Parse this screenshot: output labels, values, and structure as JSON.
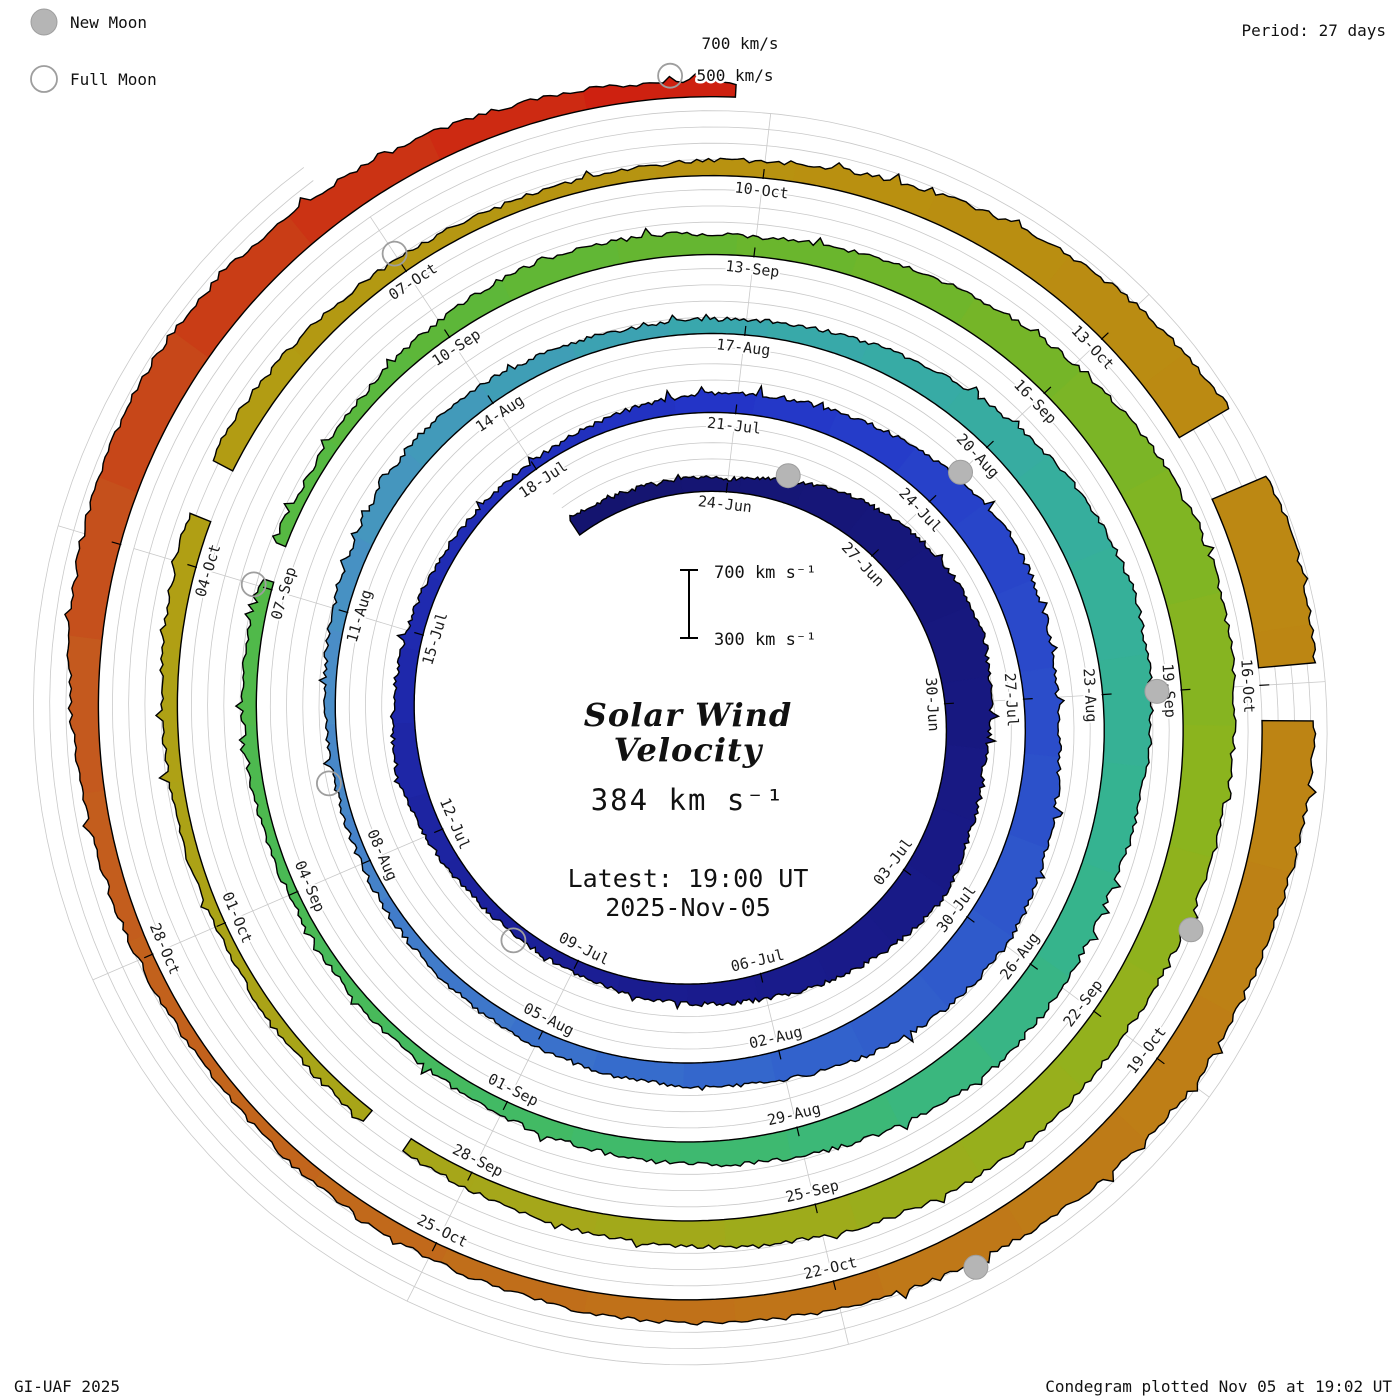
{
  "legend": {
    "new_moon": "New Moon",
    "full_moon": "Full Moon"
  },
  "header": {
    "period": "Period: 27 days"
  },
  "footer": {
    "credit": "GI-UAF 2025",
    "plotted": "Condegram plotted Nov 05 at 19:02 UT"
  },
  "top_axis": {
    "l700": "700 km/s",
    "l500": "500 km/s"
  },
  "center": {
    "title_line1": "Solar Wind",
    "title_line2": "Velocity",
    "current": "384 km s⁻¹",
    "latest": "Latest: 19:00 UT",
    "date": "2025-Nov-05",
    "scale_top": "700 km s⁻¹",
    "scale_bottom": "300 km s⁻¹"
  },
  "colors": {
    "accent_red": "#e8402f",
    "moon_gray": "#b5b5b5",
    "moon_outline": "#9e9e9e",
    "grid_gray": "#c9c9c9",
    "band_outline": "#000000"
  },
  "chart_data": {
    "type": "area",
    "subtype": "condegram-spiral",
    "title": "Solar Wind Velocity",
    "units": "km/s",
    "period_days": 27,
    "start_date": "2025-06-21",
    "end_date_label": "2025-Nov-05 19:00 UT",
    "end_day": 137.79,
    "latest_velocity_kms": 384,
    "velocity_axis": {
      "min": 300,
      "max": 700,
      "gridlines": [
        300,
        400,
        500,
        600,
        700
      ]
    },
    "date_labels": [
      "24-Jun",
      "27-Jun",
      "30-Jun",
      "03-Jul",
      "06-Jul",
      "09-Jul",
      "12-Jul",
      "15-Jul",
      "18-Jul",
      "21-Jul",
      "24-Jul",
      "27-Jul",
      "30-Jul",
      "02-Aug",
      "05-Aug",
      "08-Aug",
      "11-Aug",
      "14-Aug",
      "17-Aug",
      "20-Aug",
      "23-Aug",
      "26-Aug",
      "29-Aug",
      "01-Sep",
      "04-Sep",
      "07-Sep",
      "10-Sep",
      "13-Sep",
      "16-Sep",
      "19-Sep",
      "22-Sep",
      "25-Sep",
      "28-Sep",
      "01-Oct",
      "04-Oct",
      "07-Oct",
      "10-Oct",
      "13-Oct",
      "16-Oct",
      "19-Oct",
      "22-Oct",
      "25-Oct",
      "28-Oct"
    ],
    "daily_velocities": [
      420,
      400,
      385,
      380,
      430,
      510,
      570,
      610,
      625,
      585,
      545,
      560,
      600,
      555,
      505,
      455,
      425,
      400,
      380,
      360,
      375,
      415,
      450,
      430,
      400,
      380,
      360,
      350,
      370,
      400,
      425,
      445,
      480,
      525,
      560,
      540,
      505,
      525,
      560,
      600,
      575,
      535,
      480,
      445,
      420,
      400,
      380,
      368,
      358,
      352,
      368,
      390,
      420,
      448,
      430,
      400,
      382,
      392,
      420,
      462,
      520,
      578,
      618,
      598,
      558,
      522,
      540,
      558,
      520,
      478,
      440,
      412,
      390,
      372,
      360,
      352,
      370,
      388,
      378,
      362,
      380,
      420,
      458,
      440,
      420,
      450,
      500,
      558,
      618,
      648,
      628,
      588,
      550,
      532,
      558,
      540,
      500,
      462,
      430,
      402,
      382,
      370,
      362,
      380,
      402,
      428,
      450,
      422,
      392,
      372,
      382,
      402,
      450,
      520,
      598,
      658,
      678,
      640,
      592,
      562,
      578,
      542,
      502,
      472,
      442,
      422,
      402,
      385,
      372,
      390,
      430,
      482,
      540,
      578,
      552,
      505,
      455,
      408,
      384
    ],
    "color_stops": [
      {
        "t": 0,
        "c": "#14146e"
      },
      {
        "t": 17,
        "c": "#1a1c90"
      },
      {
        "t": 30,
        "c": "#2335c8"
      },
      {
        "t": 43,
        "c": "#3468cc"
      },
      {
        "t": 50,
        "c": "#4b8cc8"
      },
      {
        "t": 57,
        "c": "#38a8ac"
      },
      {
        "t": 65,
        "c": "#35b48e"
      },
      {
        "t": 71,
        "c": "#40ba68"
      },
      {
        "t": 78,
        "c": "#52b946"
      },
      {
        "t": 84,
        "c": "#68b62e"
      },
      {
        "t": 91,
        "c": "#8cb41e"
      },
      {
        "t": 98,
        "c": "#a4a81a"
      },
      {
        "t": 105,
        "c": "#b09f14"
      },
      {
        "t": 111,
        "c": "#b89110"
      },
      {
        "t": 118,
        "c": "#bd8414"
      },
      {
        "t": 125,
        "c": "#c06f1a"
      },
      {
        "t": 131,
        "c": "#c4581e"
      },
      {
        "t": 135,
        "c": "#cb3414"
      },
      {
        "t": 138,
        "c": "#cf1a0e"
      }
    ],
    "moons": {
      "new_days": [
        4,
        33,
        63,
        92,
        122
      ],
      "full_days": [
        19,
        49,
        78,
        108,
        137.3
      ]
    },
    "data_gaps": [
      [
        115.0,
        115.5
      ],
      [
        116.9,
        117.25
      ],
      [
        105.4,
        105.8
      ],
      [
        78.1,
        78.4
      ],
      [
        99.6,
        99.95
      ]
    ],
    "noise_seed": 7
  }
}
